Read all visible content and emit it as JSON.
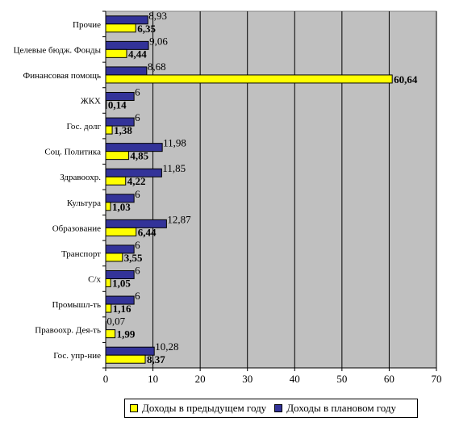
{
  "chart_data": {
    "type": "bar",
    "orientation": "horizontal",
    "categories": [
      "Прочие",
      "Целевые бюдж. Фонды",
      "Финансовая помощь",
      "ЖКХ",
      "Гос. долг",
      "Соц. Политика",
      "Здравоохр.",
      "Культура",
      "Образование",
      "Транспорт",
      "С/х",
      "Промышл-ть",
      "Правоохр. Дея-ть",
      "Гос. упр-ние"
    ],
    "series": [
      {
        "name": "Доходы в предыдущем году",
        "color": "#ffff00",
        "values": [
          6.35,
          4.44,
          60.64,
          0.14,
          1.38,
          4.85,
          4.22,
          1.03,
          6.44,
          3.55,
          1.05,
          1.16,
          1.99,
          8.37
        ],
        "labels": [
          "6,35",
          "4,44",
          "60,64",
          "0,14",
          "1,38",
          "4,85",
          "4,22",
          "1,03",
          "6,44",
          "3,55",
          "1,05",
          "1,16",
          "1,99",
          "8,37"
        ]
      },
      {
        "name": "Доходы в плановом году",
        "color": "#333399",
        "values": [
          8.93,
          9.06,
          8.68,
          6,
          6,
          11.98,
          11.85,
          6,
          12.87,
          6,
          6,
          6,
          0.07,
          10.28
        ],
        "labels": [
          "8,93",
          "9,06",
          "8,68",
          "6",
          "6",
          "11,98",
          "11,85",
          "6",
          "12,87",
          "6",
          "6",
          "6",
          "0,07",
          "10,28"
        ]
      }
    ],
    "xlim": [
      0,
      70
    ],
    "xticks": [
      0,
      10,
      20,
      30,
      40,
      50,
      60,
      70
    ],
    "grid": true,
    "plot_background": "#c0c0c0",
    "legend_position": "bottom"
  }
}
